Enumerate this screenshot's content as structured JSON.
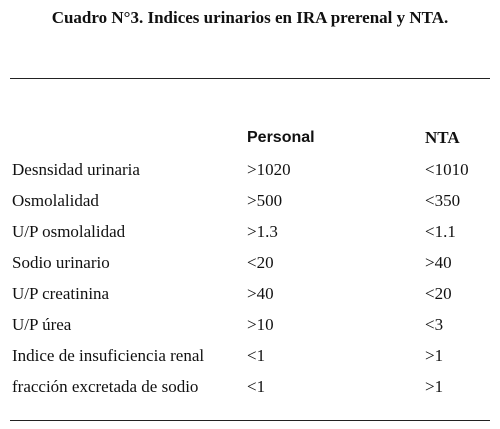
{
  "title": "Cuadro N°3. Indices urinarios en IRA prerenal y NTA.",
  "table": {
    "header": [
      "Personal",
      "NTA"
    ],
    "rows": [
      [
        "Desnsidad urinaria",
        ">1020",
        "<1010"
      ],
      [
        "Osmolalidad",
        ">500",
        "<350"
      ],
      [
        "U/P osmolalidad",
        ">1.3",
        "<1.1"
      ],
      [
        "Sodio urinario",
        "<20",
        ">40"
      ],
      [
        "U/P creatinina",
        ">40",
        "<20"
      ],
      [
        "U/P úrea",
        ">10",
        "<3"
      ],
      [
        "Indice de insuficiencia renal",
        "<1",
        ">1"
      ],
      [
        "fracción excretada de sodio",
        "<1",
        ">1"
      ]
    ]
  }
}
